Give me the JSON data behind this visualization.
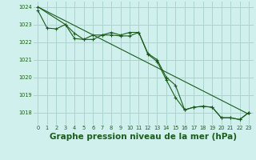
{
  "background_color": "#cff0ec",
  "grid_color": "#aad4ce",
  "line_color": "#1a5c1a",
  "marker_color": "#1a5c1a",
  "title": "Graphe pression niveau de la mer (hPa)",
  "title_fontsize": 7.5,
  "ylim": [
    1017.3,
    1024.3
  ],
  "xlim": [
    -0.5,
    23.5
  ],
  "yticks": [
    1018,
    1019,
    1020,
    1021,
    1022,
    1023,
    1024
  ],
  "xticks": [
    0,
    1,
    2,
    3,
    4,
    5,
    6,
    7,
    8,
    9,
    10,
    11,
    12,
    13,
    14,
    15,
    16,
    17,
    18,
    19,
    20,
    21,
    22,
    23
  ],
  "line1_x": [
    0,
    1,
    2,
    3,
    4,
    5,
    6,
    7,
    8,
    9,
    10,
    11,
    12,
    13,
    14,
    15,
    16,
    17,
    18,
    19,
    20,
    21,
    22,
    23
  ],
  "line1_y": [
    1023.8,
    1022.8,
    1022.75,
    1023.0,
    1022.2,
    1022.15,
    1022.4,
    1022.4,
    1022.4,
    1022.35,
    1022.35,
    1022.55,
    1021.3,
    1020.9,
    1019.85,
    1018.85,
    1018.15,
    1018.3,
    1018.35,
    1018.3,
    1017.7,
    1017.7,
    1017.6,
    1018.0
  ],
  "line2_x": [
    0,
    3,
    4,
    5,
    6,
    7,
    8,
    9,
    10,
    11,
    12,
    13,
    14,
    15,
    16,
    17,
    18,
    19,
    20,
    21,
    22,
    23
  ],
  "line2_y": [
    1024.0,
    1023.0,
    1022.5,
    1022.15,
    1022.15,
    1022.4,
    1022.55,
    1022.4,
    1022.55,
    1022.55,
    1021.35,
    1021.0,
    1020.0,
    1019.55,
    1018.15,
    1018.3,
    1018.35,
    1018.3,
    1017.7,
    1017.7,
    1017.6,
    1018.0
  ],
  "line3_x": [
    0,
    23
  ],
  "line3_y": [
    1024.0,
    1017.9
  ]
}
